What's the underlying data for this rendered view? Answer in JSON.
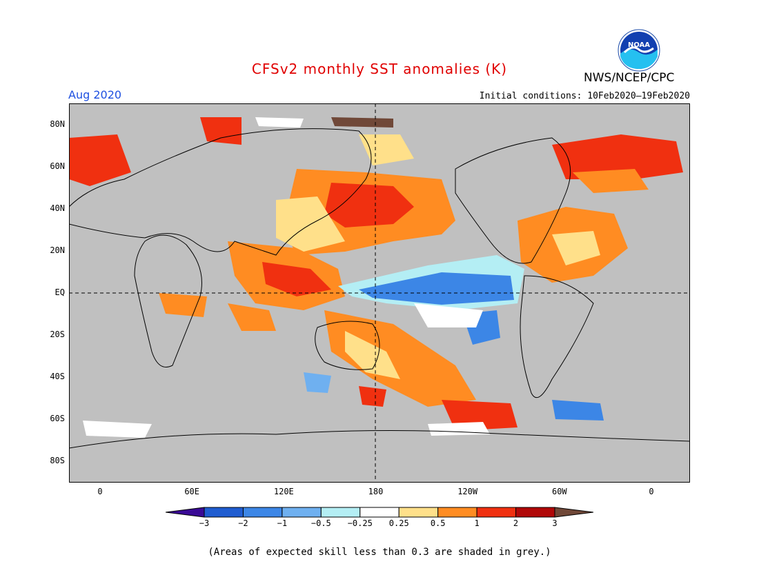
{
  "title": "CFSv2 monthly SST anomalies (K)",
  "valid_month": "Aug 2020",
  "initial_conditions": "Initial conditions: 10Feb2020–19Feb2020",
  "agency": "NWS/NCEP/CPC",
  "logo_text": "NOAA",
  "latitude_labels": [
    "80N",
    "60N",
    "40N",
    "20N",
    "EQ",
    "20S",
    "40S",
    "60S",
    "80S"
  ],
  "longitude_labels": [
    "0",
    "60E",
    "120E",
    "180",
    "120W",
    "60W",
    "0"
  ],
  "colorbar": {
    "labels": [
      "−3",
      "−2",
      "−1",
      "−0.5",
      "−0.25",
      "0.25",
      "0.5",
      "1",
      "2",
      "3"
    ],
    "colors": [
      "#3a0a96",
      "#1f5cd0",
      "#3c86e6",
      "#6fb0f0",
      "#b4eef4",
      "#ffffff",
      "#ffe08a",
      "#ff8c22",
      "#f03010",
      "#b00808",
      "#704838"
    ]
  },
  "footnote": "(Areas of expected skill less than 0.3 are shaded in grey.)",
  "colors": {
    "title": "#e00000",
    "month": "#1e50e0",
    "no_skill_grey": "#c0c0c0"
  }
}
